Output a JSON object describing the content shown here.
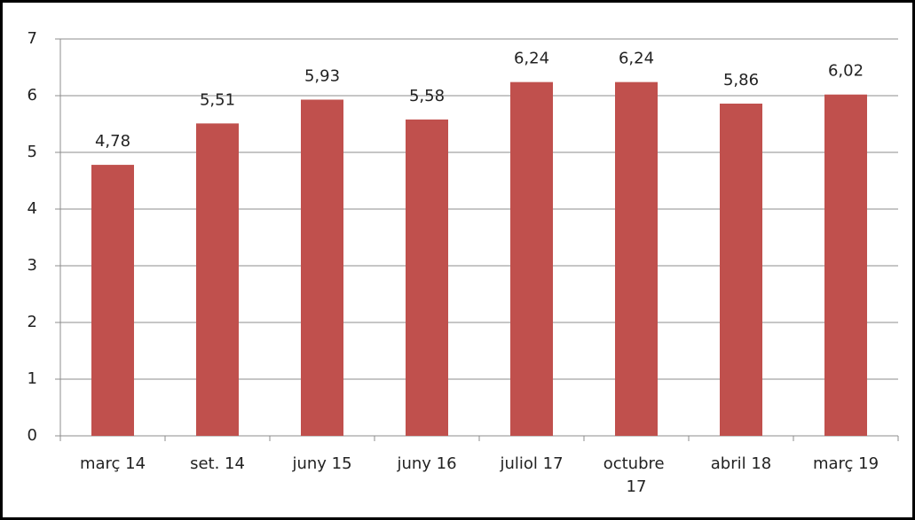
{
  "chart_data": {
    "type": "bar",
    "categories": [
      "març 14",
      "set. 14",
      "juny 15",
      "juny 16",
      "juliol 17",
      "octubre 17",
      "abril 18",
      "març 19"
    ],
    "values": [
      4.78,
      5.51,
      5.93,
      5.58,
      6.24,
      6.24,
      5.86,
      6.02
    ],
    "value_labels": [
      "4,78",
      "5,51",
      "5,93",
      "5,58",
      "6,24",
      "6,24",
      "5,86",
      "6,02"
    ],
    "color": "#c0504d",
    "ylim": [
      0,
      7
    ],
    "yticks": [
      0,
      1,
      2,
      3,
      4,
      5,
      6,
      7
    ],
    "grid": true
  }
}
